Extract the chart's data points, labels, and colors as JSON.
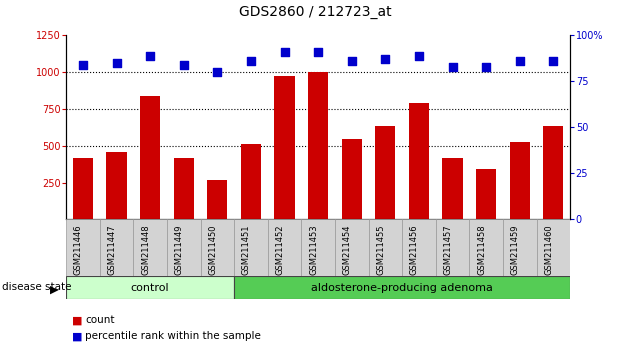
{
  "title": "GDS2860 / 212723_at",
  "samples": [
    "GSM211446",
    "GSM211447",
    "GSM211448",
    "GSM211449",
    "GSM211450",
    "GSM211451",
    "GSM211452",
    "GSM211453",
    "GSM211454",
    "GSM211455",
    "GSM211456",
    "GSM211457",
    "GSM211458",
    "GSM211459",
    "GSM211460"
  ],
  "counts": [
    420,
    460,
    840,
    415,
    265,
    510,
    975,
    1000,
    545,
    635,
    790,
    415,
    340,
    525,
    635
  ],
  "percentiles": [
    84,
    85,
    89,
    84,
    80,
    86,
    91,
    91,
    86,
    87,
    89,
    83,
    83,
    86,
    86
  ],
  "bar_color": "#cc0000",
  "dot_color": "#0000cc",
  "ylim_left": [
    0,
    1250
  ],
  "ylim_right": [
    0,
    100
  ],
  "yticks_left": [
    250,
    500,
    750,
    1000,
    1250
  ],
  "yticks_right": [
    0,
    25,
    50,
    75,
    100
  ],
  "dotted_lines": [
    500,
    750,
    1000
  ],
  "control_samples": 5,
  "control_label": "control",
  "adenoma_label": "aldosterone-producing adenoma",
  "disease_state_label": "disease state",
  "legend_count": "count",
  "legend_percentile": "percentile rank within the sample",
  "control_color": "#ccffcc",
  "adenoma_color": "#55cc55",
  "tick_label_color_left": "#cc0000",
  "tick_label_color_right": "#0000cc",
  "bar_width": 0.6,
  "dot_size": 40,
  "background_color": "#ffffff",
  "plot_bg_color": "#ffffff",
  "title_fontsize": 10,
  "tick_fontsize": 7,
  "label_fontsize": 8
}
